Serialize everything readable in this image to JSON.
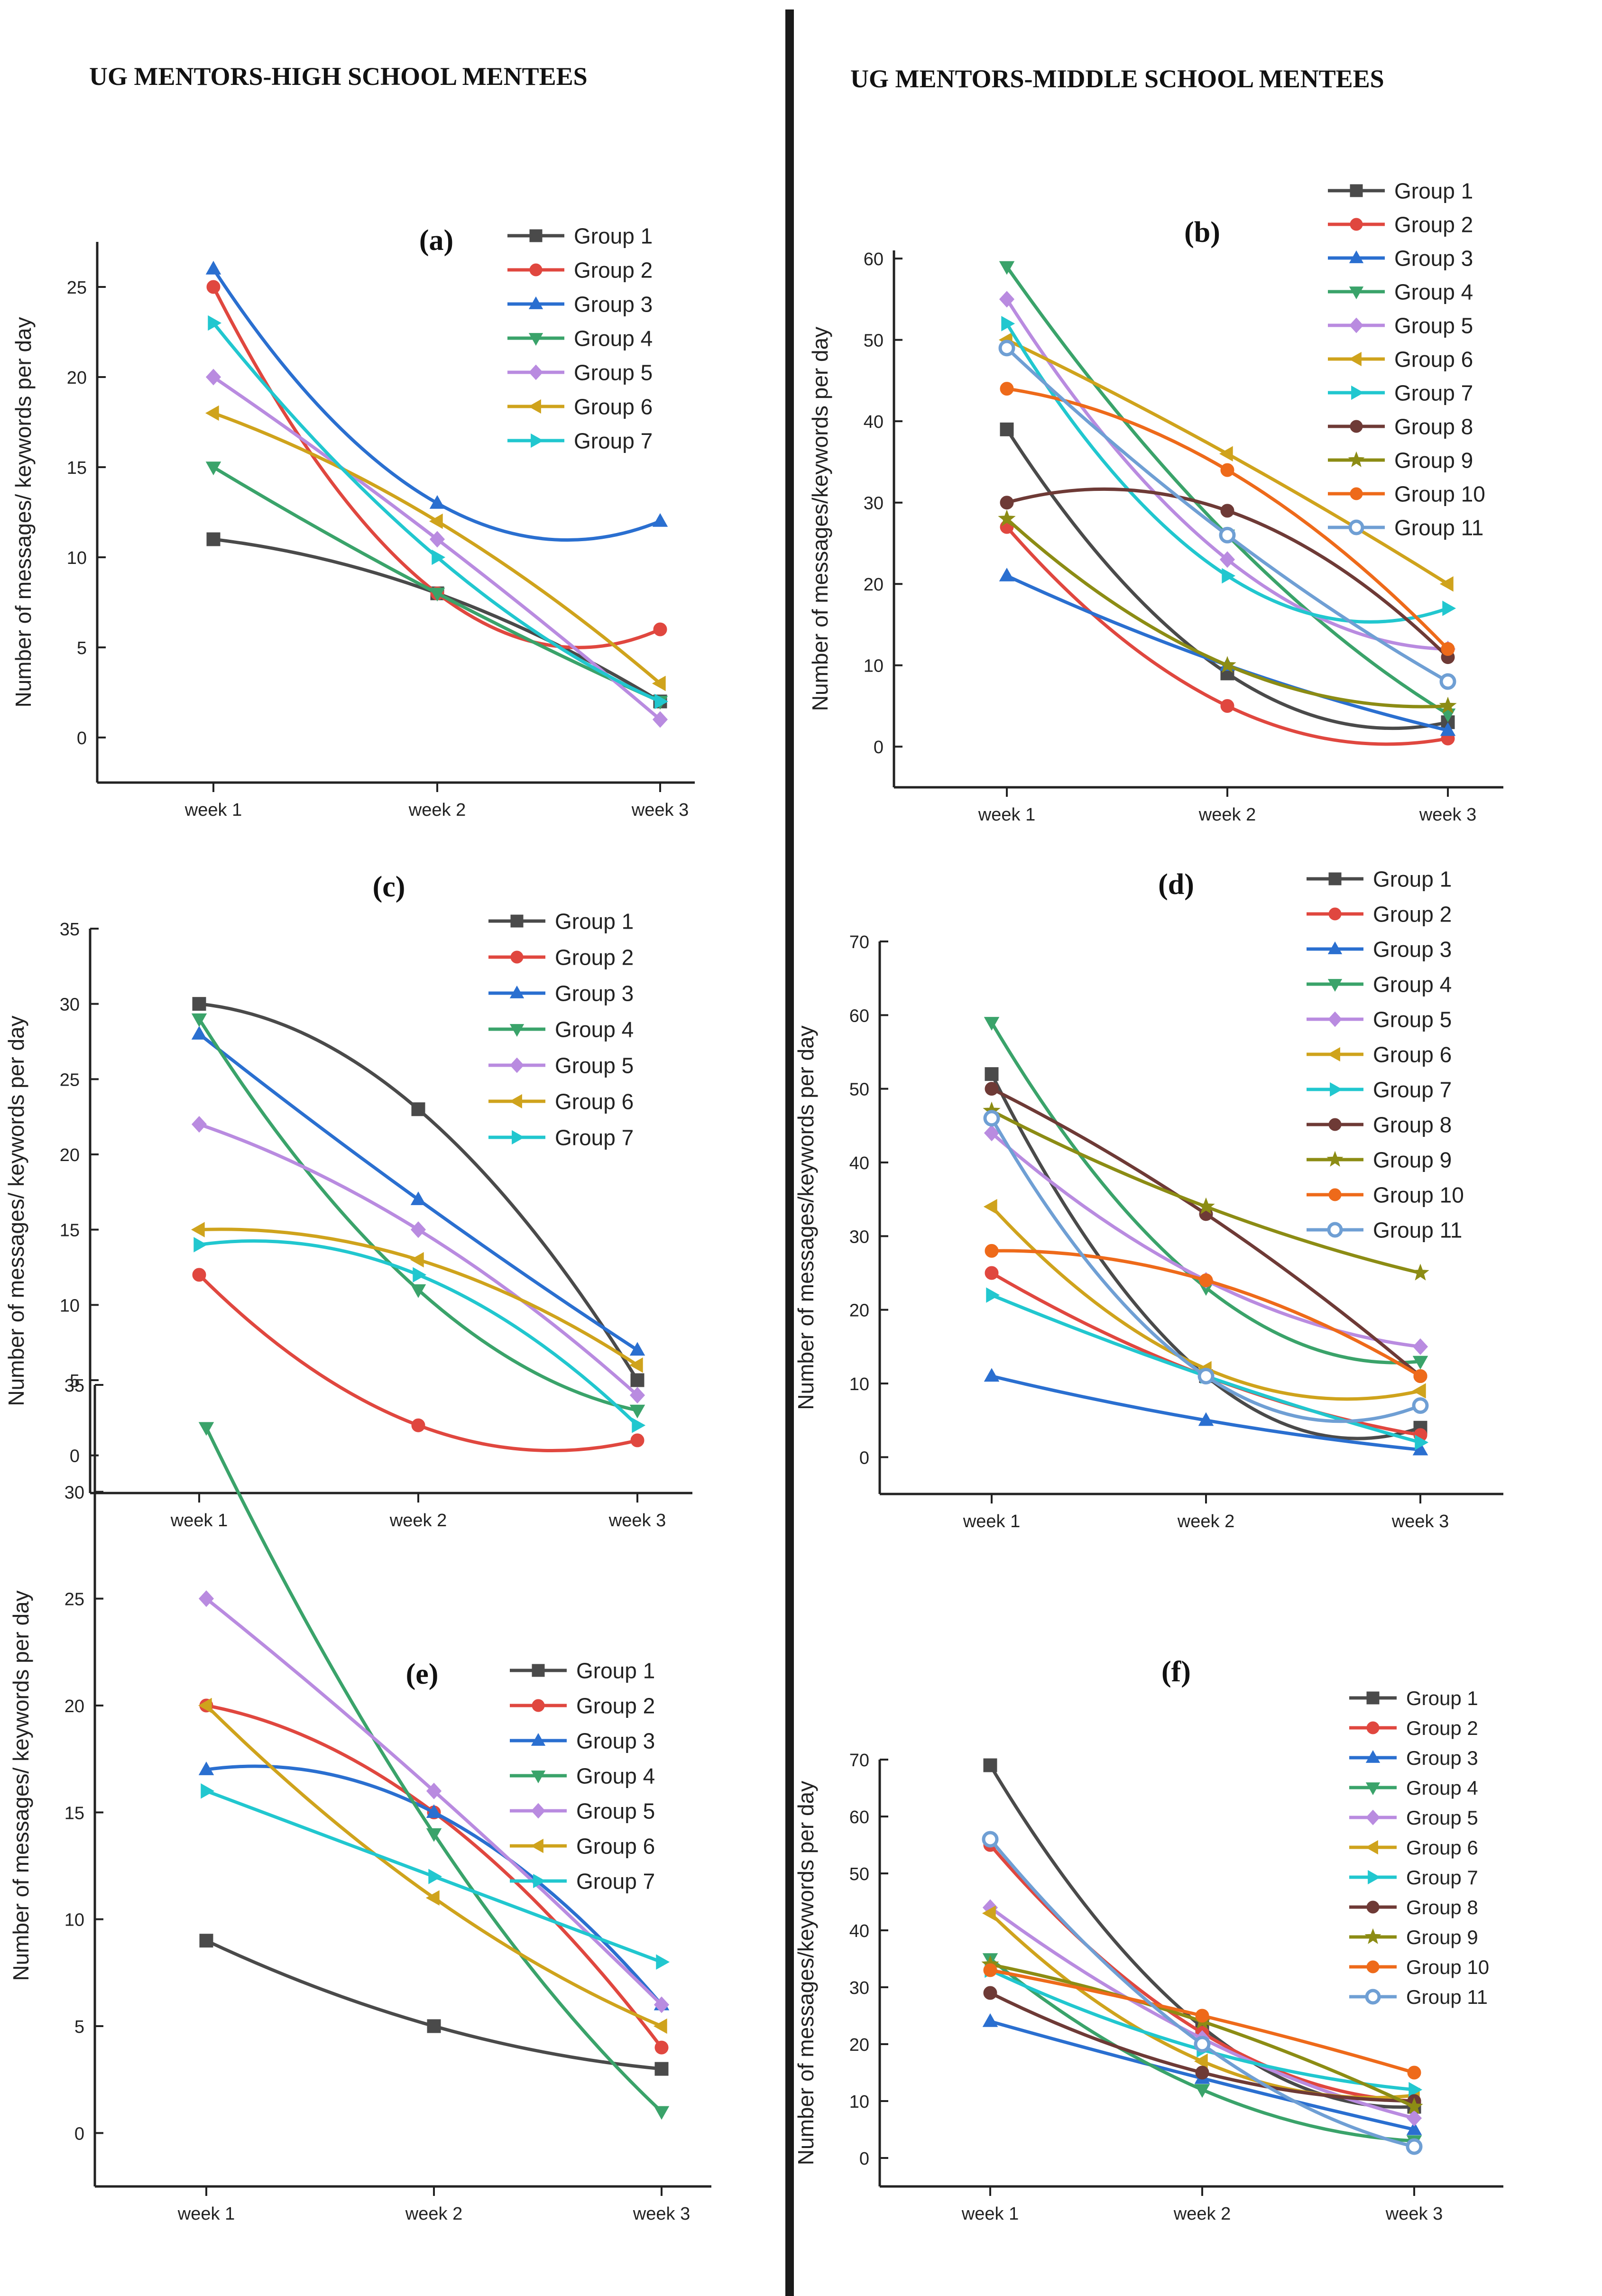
{
  "headings": {
    "left": "UG MENTORS-HIGH SCHOOL MENTEES",
    "right": "UG MENTORS-MIDDLE SCHOOL MENTEES"
  },
  "colors": {
    "Group 1": "#4a4a4a",
    "Group 2": "#e0473f",
    "Group 3": "#2a6fd0",
    "Group 4": "#3aa36a",
    "Group 5": "#b98be0",
    "Group 6": "#cfa31c",
    "Group 7": "#21c7cf",
    "Group 8": "#6e3a36",
    "Group 9": "#8c8c14",
    "Group 10": "#ee6a1a",
    "Group 11": "#6f9fd4"
  },
  "chart_data": [
    {
      "id": "a",
      "panel_label": "(a)",
      "type": "line",
      "ylabel": "Number of messages/ keywords per day",
      "categories": [
        "week 1",
        "week 2",
        "week 3"
      ],
      "yticks": [
        0,
        5,
        10,
        15,
        20,
        25
      ],
      "ylim": [
        -2.5,
        27.5
      ],
      "legend": "top-right",
      "series": [
        {
          "name": "Group 1",
          "marker": "square",
          "values": [
            11,
            8,
            2
          ]
        },
        {
          "name": "Group 2",
          "marker": "circle",
          "values": [
            25,
            8,
            6
          ]
        },
        {
          "name": "Group 3",
          "marker": "triangle-up",
          "values": [
            26,
            13,
            12
          ]
        },
        {
          "name": "Group 4",
          "marker": "triangle-down",
          "values": [
            15,
            8,
            2
          ]
        },
        {
          "name": "Group 5",
          "marker": "diamond",
          "values": [
            20,
            11,
            1
          ]
        },
        {
          "name": "Group 6",
          "marker": "triangle-left",
          "values": [
            18,
            12,
            3
          ]
        },
        {
          "name": "Group 7",
          "marker": "triangle-right",
          "values": [
            23,
            10,
            2
          ]
        }
      ]
    },
    {
      "id": "b",
      "panel_label": "(b)",
      "type": "line",
      "ylabel": "Number of messages/keywords per day",
      "categories": [
        "week 1",
        "week 2",
        "week 3"
      ],
      "yticks": [
        0,
        10,
        20,
        30,
        40,
        50,
        60
      ],
      "ylim": [
        -5,
        61
      ],
      "legend": "top-right",
      "series": [
        {
          "name": "Group 1",
          "marker": "square",
          "values": [
            39,
            9,
            3
          ]
        },
        {
          "name": "Group 2",
          "marker": "circle",
          "values": [
            27,
            5,
            1
          ]
        },
        {
          "name": "Group 3",
          "marker": "triangle-up",
          "values": [
            21,
            10,
            2
          ]
        },
        {
          "name": "Group 4",
          "marker": "triangle-down",
          "values": [
            59,
            26,
            4
          ]
        },
        {
          "name": "Group 5",
          "marker": "diamond",
          "values": [
            55,
            23,
            12
          ]
        },
        {
          "name": "Group 6",
          "marker": "triangle-left",
          "values": [
            50,
            36,
            20
          ]
        },
        {
          "name": "Group 7",
          "marker": "triangle-right",
          "values": [
            52,
            21,
            17
          ]
        },
        {
          "name": "Group 8",
          "marker": "circle",
          "values": [
            30,
            29,
            11
          ]
        },
        {
          "name": "Group 9",
          "marker": "star",
          "values": [
            28,
            10,
            5
          ]
        },
        {
          "name": "Group 10",
          "marker": "circle",
          "values": [
            44,
            34,
            12
          ]
        },
        {
          "name": "Group 11",
          "marker": "circle-open",
          "values": [
            49,
            26,
            8
          ]
        }
      ]
    },
    {
      "id": "c",
      "panel_label": "(c)",
      "type": "line",
      "ylabel": "Number of messages/ keywords per day",
      "categories": [
        "week 1",
        "week 2",
        "week 3"
      ],
      "yticks": [
        0,
        5,
        10,
        15,
        20,
        25,
        30,
        35
      ],
      "ylim": [
        -2.5,
        35
      ],
      "legend": "top-right",
      "series": [
        {
          "name": "Group 1",
          "marker": "square",
          "values": [
            30,
            23,
            5
          ]
        },
        {
          "name": "Group 2",
          "marker": "circle",
          "values": [
            12,
            2,
            1
          ]
        },
        {
          "name": "Group 3",
          "marker": "triangle-up",
          "values": [
            28,
            17,
            7
          ]
        },
        {
          "name": "Group 4",
          "marker": "triangle-down",
          "values": [
            29,
            11,
            3
          ]
        },
        {
          "name": "Group 5",
          "marker": "diamond",
          "values": [
            22,
            15,
            4
          ]
        },
        {
          "name": "Group 6",
          "marker": "triangle-left",
          "values": [
            15,
            13,
            6
          ]
        },
        {
          "name": "Group 7",
          "marker": "triangle-right",
          "values": [
            14,
            12,
            2
          ]
        }
      ]
    },
    {
      "id": "d",
      "panel_label": "(d)",
      "type": "line",
      "ylabel": "Number of messages/keywords per day",
      "categories": [
        "week 1",
        "week 2",
        "week 3"
      ],
      "yticks": [
        0,
        10,
        20,
        30,
        40,
        50,
        60,
        70
      ],
      "ylim": [
        -5,
        70
      ],
      "legend": "top-right",
      "series": [
        {
          "name": "Group 1",
          "marker": "square",
          "values": [
            52,
            11,
            4
          ]
        },
        {
          "name": "Group 2",
          "marker": "circle",
          "values": [
            25,
            11,
            3
          ]
        },
        {
          "name": "Group 3",
          "marker": "triangle-up",
          "values": [
            11,
            5,
            1
          ]
        },
        {
          "name": "Group 4",
          "marker": "triangle-down",
          "values": [
            59,
            23,
            13
          ]
        },
        {
          "name": "Group 5",
          "marker": "diamond",
          "values": [
            44,
            24,
            15
          ]
        },
        {
          "name": "Group 6",
          "marker": "triangle-left",
          "values": [
            34,
            12,
            9
          ]
        },
        {
          "name": "Group 7",
          "marker": "triangle-right",
          "values": [
            22,
            11,
            2
          ]
        },
        {
          "name": "Group 8",
          "marker": "circle",
          "values": [
            50,
            33,
            11
          ]
        },
        {
          "name": "Group 9",
          "marker": "star",
          "values": [
            47,
            34,
            25
          ]
        },
        {
          "name": "Group 10",
          "marker": "circle",
          "values": [
            28,
            24,
            11
          ]
        },
        {
          "name": "Group 11",
          "marker": "circle-open",
          "values": [
            46,
            11,
            7
          ]
        }
      ]
    },
    {
      "id": "e",
      "panel_label": "(e)",
      "type": "line",
      "ylabel": "Number of messages/ keywords per day",
      "categories": [
        "week 1",
        "week 2",
        "week 3"
      ],
      "yticks": [
        0,
        5,
        10,
        15,
        20,
        25,
        30,
        35
      ],
      "ylim": [
        -2.5,
        35
      ],
      "legend": "top-right",
      "series": [
        {
          "name": "Group 1",
          "marker": "square",
          "values": [
            9,
            5,
            3
          ]
        },
        {
          "name": "Group 2",
          "marker": "circle",
          "values": [
            20,
            15,
            4
          ]
        },
        {
          "name": "Group 3",
          "marker": "triangle-up",
          "values": [
            17,
            15,
            6
          ]
        },
        {
          "name": "Group 4",
          "marker": "triangle-down",
          "values": [
            33,
            14,
            1
          ]
        },
        {
          "name": "Group 5",
          "marker": "diamond",
          "values": [
            25,
            16,
            6
          ]
        },
        {
          "name": "Group 6",
          "marker": "triangle-left",
          "values": [
            20,
            11,
            5
          ]
        },
        {
          "name": "Group 7",
          "marker": "triangle-right",
          "values": [
            16,
            12,
            8
          ]
        }
      ]
    },
    {
      "id": "f",
      "panel_label": "(f)",
      "type": "line",
      "ylabel": "Number of messages/keywords per day",
      "categories": [
        "week 1",
        "week 2",
        "week 3"
      ],
      "yticks": [
        0,
        10,
        20,
        30,
        40,
        50,
        60,
        70
      ],
      "ylim": [
        -5,
        70
      ],
      "legend": "top-right",
      "series": [
        {
          "name": "Group 1",
          "marker": "square",
          "values": [
            69,
            23,
            9
          ]
        },
        {
          "name": "Group 2",
          "marker": "circle",
          "values": [
            55,
            22,
            10
          ]
        },
        {
          "name": "Group 3",
          "marker": "triangle-up",
          "values": [
            24,
            14,
            5
          ]
        },
        {
          "name": "Group 4",
          "marker": "triangle-down",
          "values": [
            35,
            12,
            3
          ]
        },
        {
          "name": "Group 5",
          "marker": "diamond",
          "values": [
            44,
            21,
            7
          ]
        },
        {
          "name": "Group 6",
          "marker": "triangle-left",
          "values": [
            43,
            17,
            11
          ]
        },
        {
          "name": "Group 7",
          "marker": "triangle-right",
          "values": [
            33,
            19,
            12
          ]
        },
        {
          "name": "Group 8",
          "marker": "circle",
          "values": [
            29,
            15,
            10
          ]
        },
        {
          "name": "Group 9",
          "marker": "star",
          "values": [
            34,
            24,
            9
          ]
        },
        {
          "name": "Group 10",
          "marker": "circle",
          "values": [
            33,
            25,
            15
          ]
        },
        {
          "name": "Group 11",
          "marker": "circle-open",
          "values": [
            56,
            20,
            2
          ]
        }
      ]
    }
  ]
}
